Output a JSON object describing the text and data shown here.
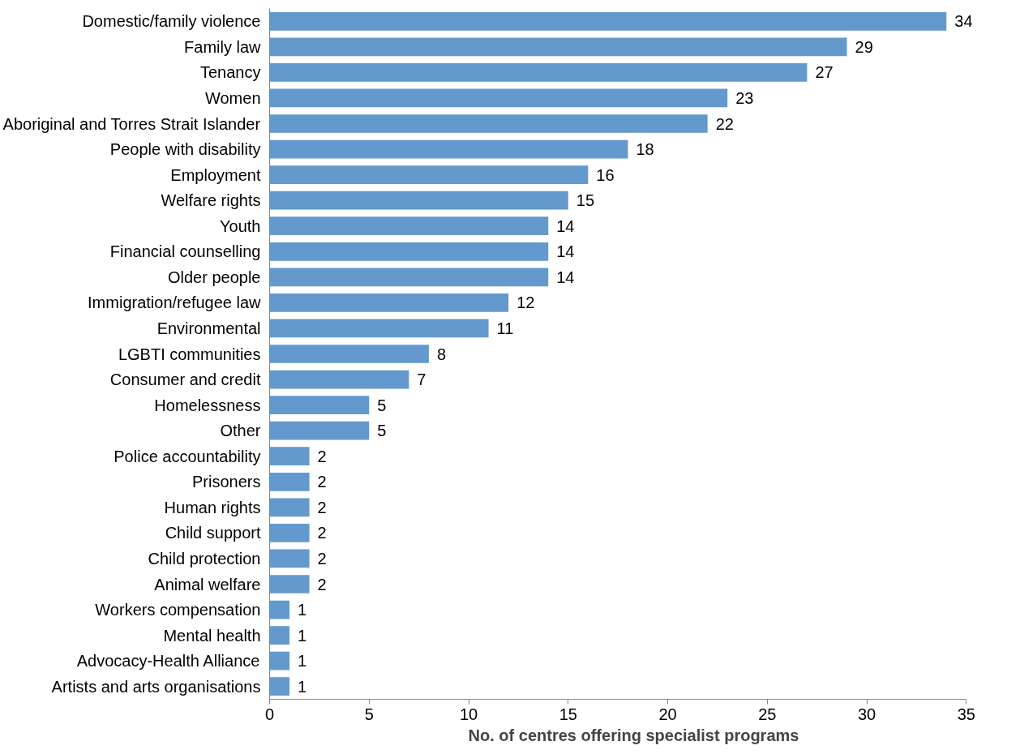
{
  "chart_data": {
    "type": "bar",
    "orientation": "horizontal",
    "xlabel": "No. of centres offering specialist programs",
    "categories": [
      "Domestic/family violence",
      "Family law",
      "Tenancy",
      "Women",
      "Aboriginal and Torres Strait Islander",
      "People with disability",
      "Employment",
      "Welfare rights",
      "Youth",
      "Financial counselling",
      "Older people",
      "Immigration/refugee law",
      "Environmental",
      "LGBTI communities",
      "Consumer and credit",
      "Homelessness",
      "Other",
      "Police accountability",
      "Prisoners",
      "Human rights",
      "Child support",
      "Child protection",
      "Animal welfare",
      "Workers compensation",
      "Mental health",
      "Advocacy-Health Alliance",
      "Artists and arts organisations"
    ],
    "values": [
      34,
      29,
      27,
      23,
      22,
      18,
      16,
      15,
      14,
      14,
      14,
      12,
      11,
      8,
      7,
      5,
      5,
      2,
      2,
      2,
      2,
      2,
      2,
      1,
      1,
      1,
      1
    ],
    "color": "#6399cc",
    "xlim": [
      0,
      35
    ],
    "xticks": [
      0,
      5,
      10,
      15,
      20,
      25,
      30,
      35
    ],
    "grid": false,
    "data_labels": true
  }
}
